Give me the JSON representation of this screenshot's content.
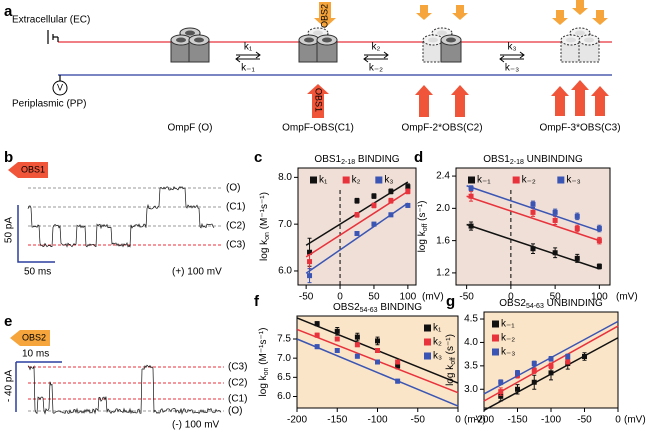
{
  "panel_labels": [
    "a",
    "b",
    "c",
    "d",
    "e",
    "f",
    "g"
  ],
  "diagram": {
    "ec": "Extracellular (EC)",
    "pp": "Periplasmic (PP)",
    "voltmeter": "V",
    "states": [
      "OmpF (O)",
      "OmpF-OBS(C1)",
      "OmpF-2*OBS(C2)",
      "OmpF-3*OBS(C3)"
    ],
    "rates": [
      [
        "k₁",
        "k₋₁"
      ],
      [
        "k₂",
        "k₋₂"
      ],
      [
        "k₃",
        "k₋₃"
      ]
    ],
    "obs2": "OBS2",
    "obs1": "OBS1"
  },
  "traces": [
    {
      "blocker": "OBS1",
      "levels": [
        "(O)",
        "(C1)",
        "(C2)",
        "(C3)"
      ],
      "current_scale": "50 pA",
      "time_scale": "50 ms",
      "voltage": "(+) 100 mV"
    },
    {
      "blocker": "OBS2",
      "levels": [
        "(C3)",
        "(C2)",
        "(C1)",
        "(O)"
      ],
      "current_scale": "- 40 pA",
      "time_scale": "10 ms",
      "voltage": "(-) 100 mV"
    }
  ],
  "chart_data": [
    {
      "type": "scatter",
      "title": [
        "OBS1",
        "2-18",
        " BINDING"
      ],
      "ylabel": [
        "log k",
        "on",
        " (M⁻¹s⁻¹)"
      ],
      "xlabel": "(mV)",
      "xlim": [
        -62,
        112
      ],
      "ylim": [
        5.7,
        8.2
      ],
      "xticks": [
        -50,
        0,
        50,
        100
      ],
      "yticks": [
        {
          "value": 6,
          "label": "6.0"
        },
        {
          "value": 7,
          "label": "7.0"
        },
        {
          "value": 8,
          "label": "8.0"
        }
      ],
      "reference_x": 0,
      "background": "#efdfd6",
      "legend": "top",
      "series": [
        {
          "name": "k₁",
          "color": "#111111",
          "x": [
            -45,
            25,
            50,
            75,
            100
          ],
          "values": [
            6.4,
            7.5,
            7.6,
            7.7,
            7.8
          ],
          "errors": [
            0.3,
            0.05,
            0.05,
            0.05,
            0.06
          ],
          "fit": {
            "x": [
              -50,
              100
            ],
            "y": [
              6.55,
              7.9
            ]
          }
        },
        {
          "name": "k₂",
          "color": "#e8323c",
          "x": [
            -45,
            25,
            50,
            75,
            100
          ],
          "values": [
            6.2,
            7.2,
            7.4,
            7.5,
            7.7
          ],
          "errors": [
            0.15,
            0.05,
            0.05,
            0.05,
            0.05
          ],
          "fit": {
            "x": [
              -50,
              100
            ],
            "y": [
              6.3,
              7.7
            ]
          }
        },
        {
          "name": "k₃",
          "color": "#3a55b4",
          "x": [
            -45,
            25,
            50,
            75,
            100
          ],
          "values": [
            5.9,
            6.8,
            7.0,
            7.2,
            7.4
          ],
          "errors": [
            0.15,
            0.04,
            0.04,
            0.04,
            0.04
          ],
          "fit": {
            "x": [
              -50,
              100
            ],
            "y": [
              5.95,
              7.45
            ]
          }
        }
      ]
    },
    {
      "type": "scatter",
      "title": [
        "OBS1",
        "2-18",
        " UNBINDING"
      ],
      "ylabel": [
        "log k",
        "off",
        " (s⁻¹)"
      ],
      "xlabel": "(mV)",
      "xlim": [
        -62,
        112
      ],
      "ylim": [
        1.05,
        2.5
      ],
      "xticks": [
        -50,
        0,
        50,
        100
      ],
      "yticks": [
        1.2,
        1.6,
        {
          "value": 2,
          "label": "2.0"
        },
        2.4
      ],
      "reference_x": 0,
      "background": "#efdfd6",
      "legend": "top",
      "series": [
        {
          "name": "k₋₁",
          "color": "#111111",
          "x": [
            -45,
            25,
            50,
            75,
            100
          ],
          "values": [
            1.78,
            1.5,
            1.45,
            1.38,
            1.28
          ],
          "errors": [
            0.05,
            0.06,
            0.06,
            0.05,
            0.03
          ],
          "fit": {
            "x": [
              -50,
              100
            ],
            "y": [
              1.8,
              1.25
            ]
          }
        },
        {
          "name": "k₋₂",
          "color": "#e8323c",
          "x": [
            -45,
            25,
            50,
            75,
            100
          ],
          "values": [
            2.15,
            1.95,
            1.85,
            1.75,
            1.6
          ],
          "errors": [
            0.06,
            0.05,
            0.05,
            0.04,
            0.04
          ],
          "fit": {
            "x": [
              -50,
              100
            ],
            "y": [
              2.15,
              1.6
            ]
          }
        },
        {
          "name": "k₋₃",
          "color": "#3a55b4",
          "x": [
            -45,
            25,
            50,
            75,
            100
          ],
          "values": [
            2.25,
            2.05,
            1.95,
            1.9,
            1.75
          ],
          "errors": [
            0.03,
            0.04,
            0.04,
            0.04,
            0.04
          ],
          "fit": {
            "x": [
              -50,
              100
            ],
            "y": [
              2.28,
              1.72
            ]
          }
        }
      ]
    },
    {
      "type": "scatter",
      "title": [
        "OBS2",
        "54-63",
        " BINDING"
      ],
      "ylabel": [
        "log k",
        "on",
        " (M⁻¹s⁻¹)"
      ],
      "xlabel": "(mV)",
      "xlim": [
        -200,
        0
      ],
      "ylim": [
        5.7,
        8.1
      ],
      "xticks": [
        -200,
        -150,
        -100,
        -50,
        0
      ],
      "yticks": [
        {
          "value": 6,
          "label": "6.0"
        },
        6.5,
        {
          "value": 7,
          "label": "7.0"
        },
        7.5
      ],
      "background": "#fbe5c8",
      "legend": "right",
      "series": [
        {
          "name": "k₁",
          "color": "#111111",
          "x": [
            -175,
            -150,
            -125,
            -100,
            -75
          ],
          "values": [
            7.9,
            7.7,
            7.55,
            7.45,
            6.8
          ],
          "errors": [
            0.05,
            0.1,
            0.1,
            0.1,
            0.08
          ],
          "fit": {
            "x": [
              -200,
              0
            ],
            "y": [
              8.05,
              6.35
            ]
          }
        },
        {
          "name": "k₂",
          "color": "#e8323c",
          "x": [
            -175,
            -150,
            -125,
            -100,
            -75
          ],
          "values": [
            7.6,
            7.5,
            7.35,
            7.2,
            6.9
          ],
          "errors": [
            0.05,
            0.05,
            0.05,
            0.05,
            0.05
          ],
          "fit": {
            "x": [
              -200,
              0
            ],
            "y": [
              7.75,
              6.1
            ]
          }
        },
        {
          "name": "k₃",
          "color": "#3a55b4",
          "x": [
            -175,
            -150,
            -125,
            -100,
            -75
          ],
          "values": [
            7.3,
            7.2,
            7.05,
            6.9,
            6.4
          ],
          "errors": [
            0.05,
            0.05,
            0.05,
            0.05,
            0.05
          ],
          "fit": {
            "x": [
              -200,
              0
            ],
            "y": [
              7.5,
              5.75
            ]
          }
        }
      ]
    },
    {
      "type": "scatter",
      "title": [
        "OBS2",
        "54-63",
        " UNBINDING"
      ],
      "ylabel": [
        "log k",
        "off",
        " (s⁻¹)"
      ],
      "xlabel": "(mV)",
      "xlim": [
        -200,
        0
      ],
      "ylim": [
        2.6,
        4.65
      ],
      "xticks": [
        -200,
        -150,
        -100,
        -50,
        0
      ],
      "yticks": [
        {
          "value": 3,
          "label": "3.0"
        },
        3.5,
        {
          "value": 4,
          "label": "4.0"
        },
        4.5
      ],
      "background": "#fbe5c8",
      "legend": "upper left",
      "series": [
        {
          "name": "k₋₁",
          "color": "#111111",
          "x": [
            -175,
            -150,
            -125,
            -100,
            -75,
            -50
          ],
          "values": [
            2.85,
            3.0,
            3.15,
            3.35,
            3.55,
            3.7
          ],
          "errors": [
            0.1,
            0.1,
            0.15,
            0.15,
            0.12,
            0.08
          ],
          "fit": {
            "x": [
              -200,
              0
            ],
            "y": [
              2.55,
              4.1
            ]
          }
        },
        {
          "name": "k₋₂",
          "color": "#e8323c",
          "x": [
            -175,
            -150,
            -125,
            -100,
            -75
          ],
          "values": [
            2.95,
            3.3,
            3.4,
            3.5,
            3.6
          ],
          "errors": [
            0.08,
            0.06,
            0.06,
            0.06,
            0.06
          ],
          "fit": {
            "x": [
              -200,
              0
            ],
            "y": [
              2.75,
              4.35
            ]
          }
        },
        {
          "name": "k₋₃",
          "color": "#3a55b4",
          "x": [
            -175,
            -150,
            -125,
            -100,
            -75
          ],
          "values": [
            3.15,
            3.35,
            3.55,
            3.65,
            3.7
          ],
          "errors": [
            0.05,
            0.05,
            0.05,
            0.05,
            0.05
          ],
          "fit": {
            "x": [
              -200,
              0
            ],
            "y": [
              2.9,
              4.45
            ]
          }
        }
      ]
    }
  ]
}
